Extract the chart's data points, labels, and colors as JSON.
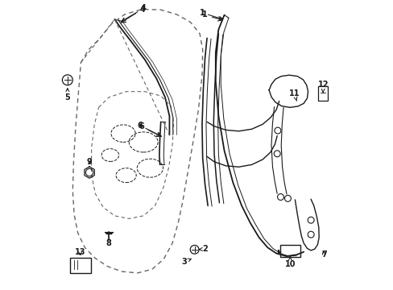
{
  "background_color": "#ffffff",
  "line_color": "#1a1a1a",
  "dashed_color": "#666666",
  "figsize": [
    4.89,
    3.6
  ],
  "dpi": 100
}
